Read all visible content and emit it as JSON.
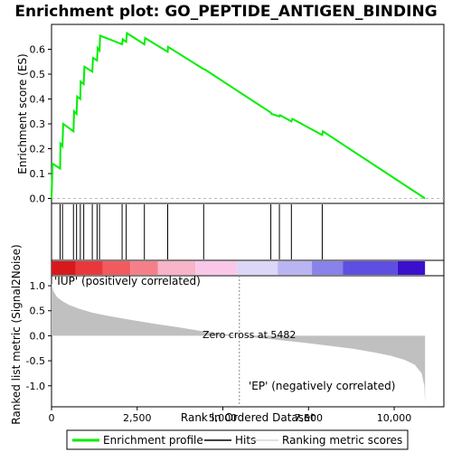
{
  "chart_data": {
    "type": "line",
    "title": "Enrichment plot: GO_PEPTIDE_ANTIGEN_BINDING",
    "es_panel": {
      "ylabel": "Enrichment score (ES)",
      "ylim": [
        -0.02,
        0.7
      ],
      "yticks": [
        "0.0",
        "0.1",
        "0.2",
        "0.3",
        "0.4",
        "0.5",
        "0.6"
      ],
      "ytick_values": [
        0.0,
        0.1,
        0.2,
        0.3,
        0.4,
        0.5,
        0.6
      ],
      "series": [
        {
          "name": "Enrichment profile",
          "color": "#00ee00",
          "x": [
            0,
            30,
            250,
            260,
            320,
            340,
            640,
            660,
            730,
            750,
            840,
            850,
            940,
            960,
            1190,
            1210,
            1330,
            1345,
            1400,
            1420,
            2060,
            2080,
            2180,
            2200,
            2710,
            2730,
            3390,
            3400,
            4440,
            4460,
            6400,
            6420,
            6650,
            6670,
            7000,
            7030,
            7900,
            7920,
            10900
          ],
          "y": [
            0.0,
            0.14,
            0.12,
            0.22,
            0.21,
            0.3,
            0.27,
            0.35,
            0.34,
            0.41,
            0.4,
            0.47,
            0.46,
            0.53,
            0.51,
            0.565,
            0.555,
            0.605,
            0.595,
            0.655,
            0.62,
            0.64,
            0.63,
            0.665,
            0.62,
            0.645,
            0.59,
            0.61,
            0.52,
            0.52,
            0.345,
            0.34,
            0.33,
            0.335,
            0.31,
            0.32,
            0.255,
            0.27,
            0.0
          ]
        }
      ]
    },
    "hits_panel": {
      "name": "Hits",
      "hit_ranks": [
        250,
        320,
        640,
        730,
        840,
        940,
        1190,
        1330,
        1400,
        2060,
        2180,
        2710,
        3390,
        4440,
        6400,
        6650,
        7000,
        7900
      ]
    },
    "heat_bar": {
      "colors": [
        "#d7191c",
        "#e8383b",
        "#f25a5f",
        "#f47f8a",
        "#f8b4c8",
        "#fbc7e8",
        "#dcd6f8",
        "#bab4f2",
        "#8882ea",
        "#5e4fe0",
        "#3a10cc"
      ],
      "label_positive": "'IUP' (positively correlated)",
      "label_negative": "'EP' (negatively correlated)",
      "positive_color": "#cc0000",
      "negative_color": "#0000cc"
    },
    "metric_panel": {
      "ylabel": "Ranked list metric (Signal2Noise)",
      "ylim": [
        -1.42,
        1.2
      ],
      "yticks": [
        "1.0",
        "0.5",
        "0.0",
        "-0.5",
        "-1.0"
      ],
      "ytick_values": [
        1.0,
        0.5,
        0.0,
        -0.5,
        -1.0
      ],
      "zero_cross_label": "Zero cross at 5482",
      "zero_cross_rank": 5482,
      "fill_color": "#c0c0c0",
      "name": "Ranking metric scores",
      "curve_x": [
        0,
        50,
        150,
        300,
        500,
        800,
        1200,
        1700,
        2300,
        3000,
        3700,
        4400,
        5000,
        5482,
        6000,
        6700,
        7400,
        8100,
        8800,
        9400,
        9900,
        10300,
        10600,
        10800,
        10880,
        10900
      ],
      "curve_y": [
        1.05,
        0.9,
        0.78,
        0.7,
        0.62,
        0.54,
        0.46,
        0.39,
        0.32,
        0.24,
        0.17,
        0.09,
        0.04,
        0.0,
        -0.04,
        -0.09,
        -0.14,
        -0.2,
        -0.26,
        -0.33,
        -0.4,
        -0.48,
        -0.58,
        -0.75,
        -1.0,
        -1.35
      ]
    },
    "xaxis": {
      "label": "Rank in Ordered Dataset",
      "xlim": [
        0,
        11450
      ],
      "ticks": [
        "0",
        "2,500",
        "5,000",
        "7,500",
        "10,000"
      ],
      "tick_values": [
        0,
        2500,
        5000,
        7500,
        10000
      ]
    },
    "legend": [
      {
        "label": "Enrichment profile",
        "color": "#00ee00"
      },
      {
        "label": "Hits",
        "color": "#000000"
      },
      {
        "label": "Ranking metric scores",
        "color": "#c0c0c0"
      }
    ]
  }
}
